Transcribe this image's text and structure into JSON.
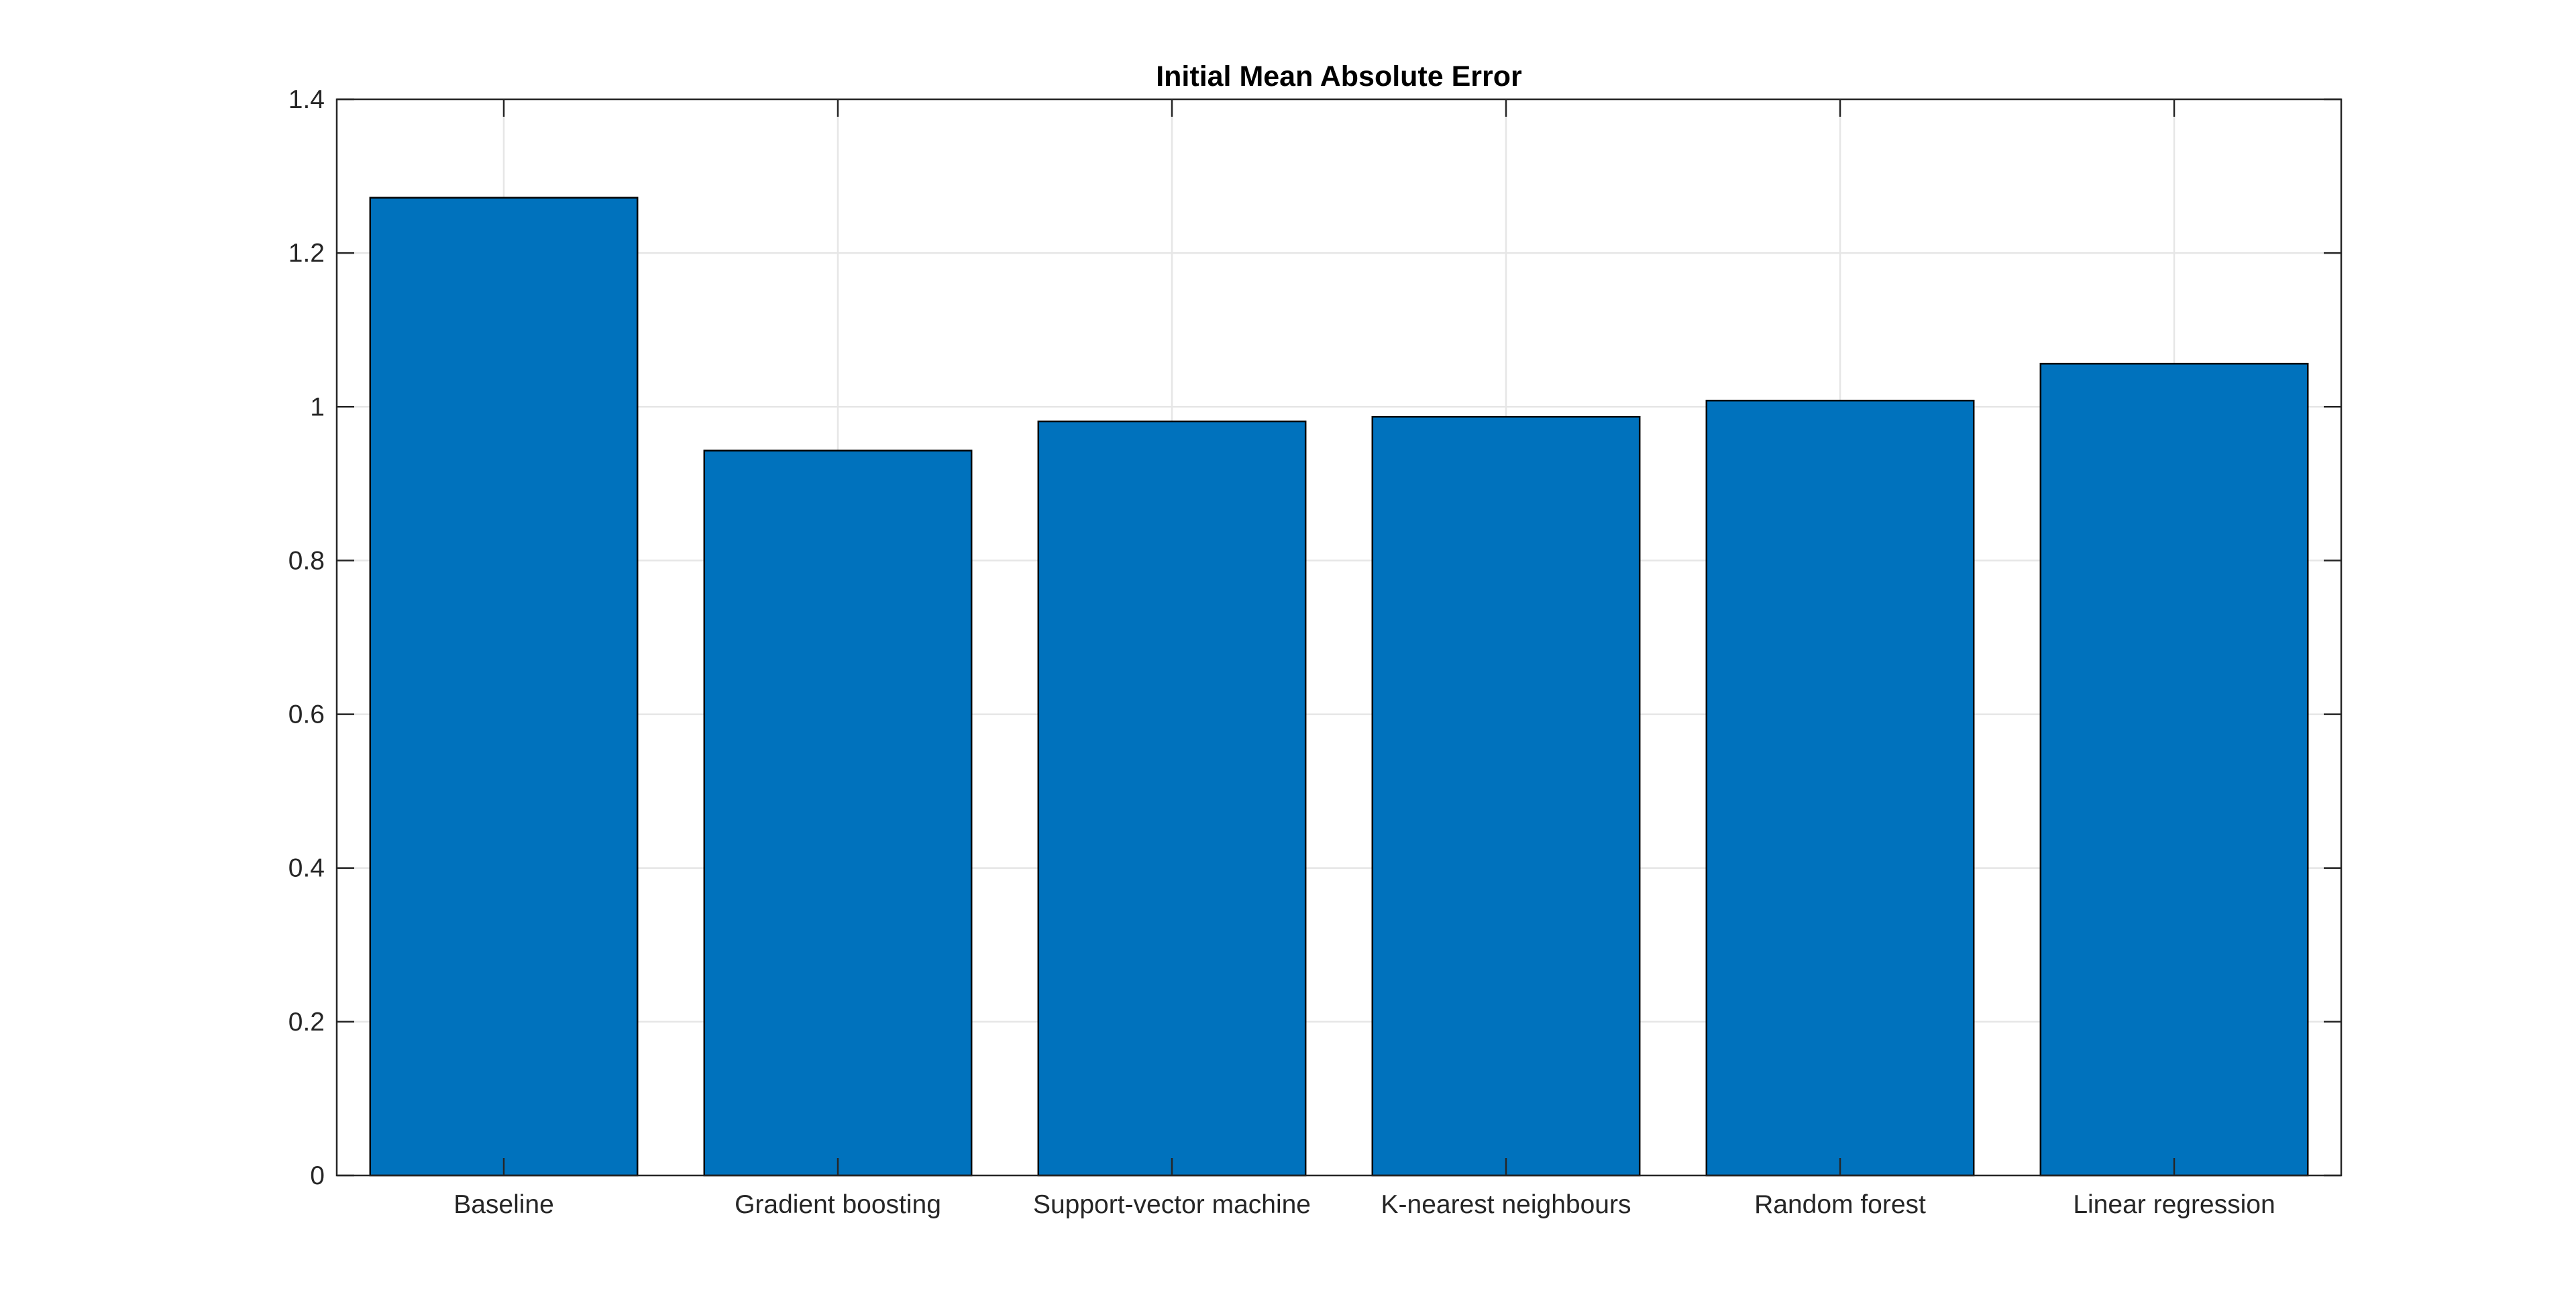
{
  "chart_data": {
    "type": "bar",
    "title": "Initial Mean Absolute Error",
    "xlabel": "",
    "ylabel": "",
    "categories": [
      "Baseline",
      "Gradient boosting",
      "Support-vector machine",
      "K-nearest neighbours",
      "Random forest",
      "Linear regression"
    ],
    "values": [
      1.272,
      0.943,
      0.981,
      0.987,
      1.008,
      1.056
    ],
    "ylim": [
      0,
      1.4
    ],
    "yticks": [
      0,
      0.2,
      0.4,
      0.6,
      0.8,
      1,
      1.2,
      1.4
    ],
    "ytick_labels": [
      "0",
      "0.2",
      "0.4",
      "0.6",
      "0.8",
      "1",
      "1.2",
      "1.4"
    ],
    "grid": true,
    "colors": {
      "bar_fill": "#0072BD",
      "bar_edge": "#000000",
      "grid": "#e6e6e6",
      "axis": "#262626"
    }
  }
}
